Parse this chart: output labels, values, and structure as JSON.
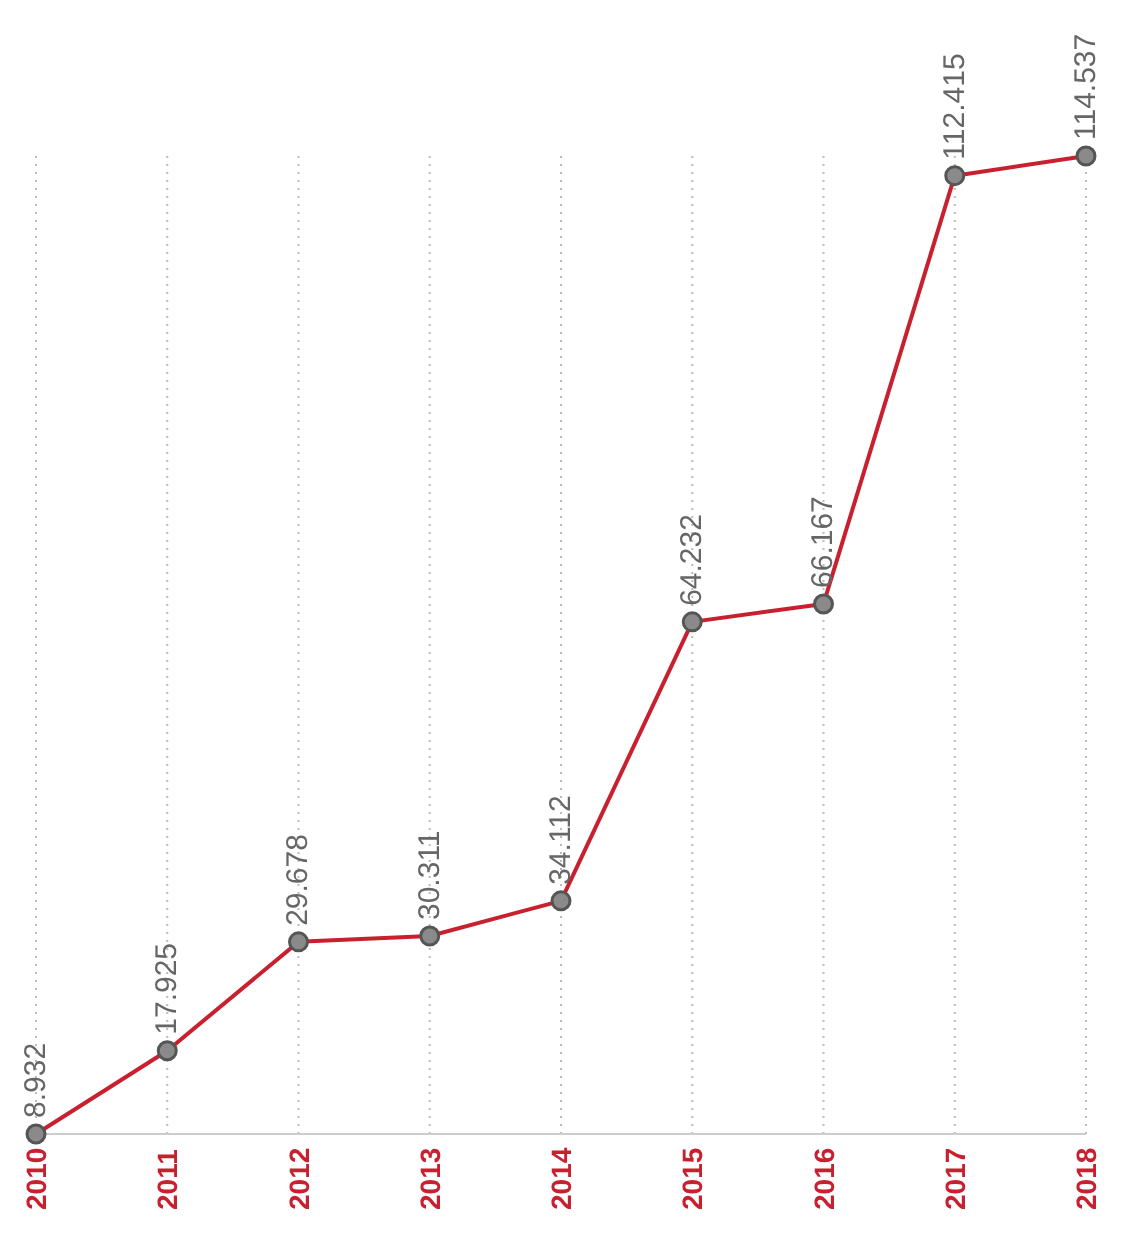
{
  "chart_data": {
    "type": "line",
    "categories": [
      "2010",
      "2011",
      "2012",
      "2013",
      "2014",
      "2015",
      "2016",
      "2017",
      "2018"
    ],
    "series": [
      {
        "color": "#c8202f",
        "values": [
          8.932,
          17.925,
          29.678,
          30.311,
          34.112,
          64.232,
          66.167,
          112.415,
          114.537
        ]
      }
    ],
    "data_labels": true,
    "grid": "x",
    "marker": "circle",
    "line_style": "solid",
    "tick_labels": "x"
  }
}
